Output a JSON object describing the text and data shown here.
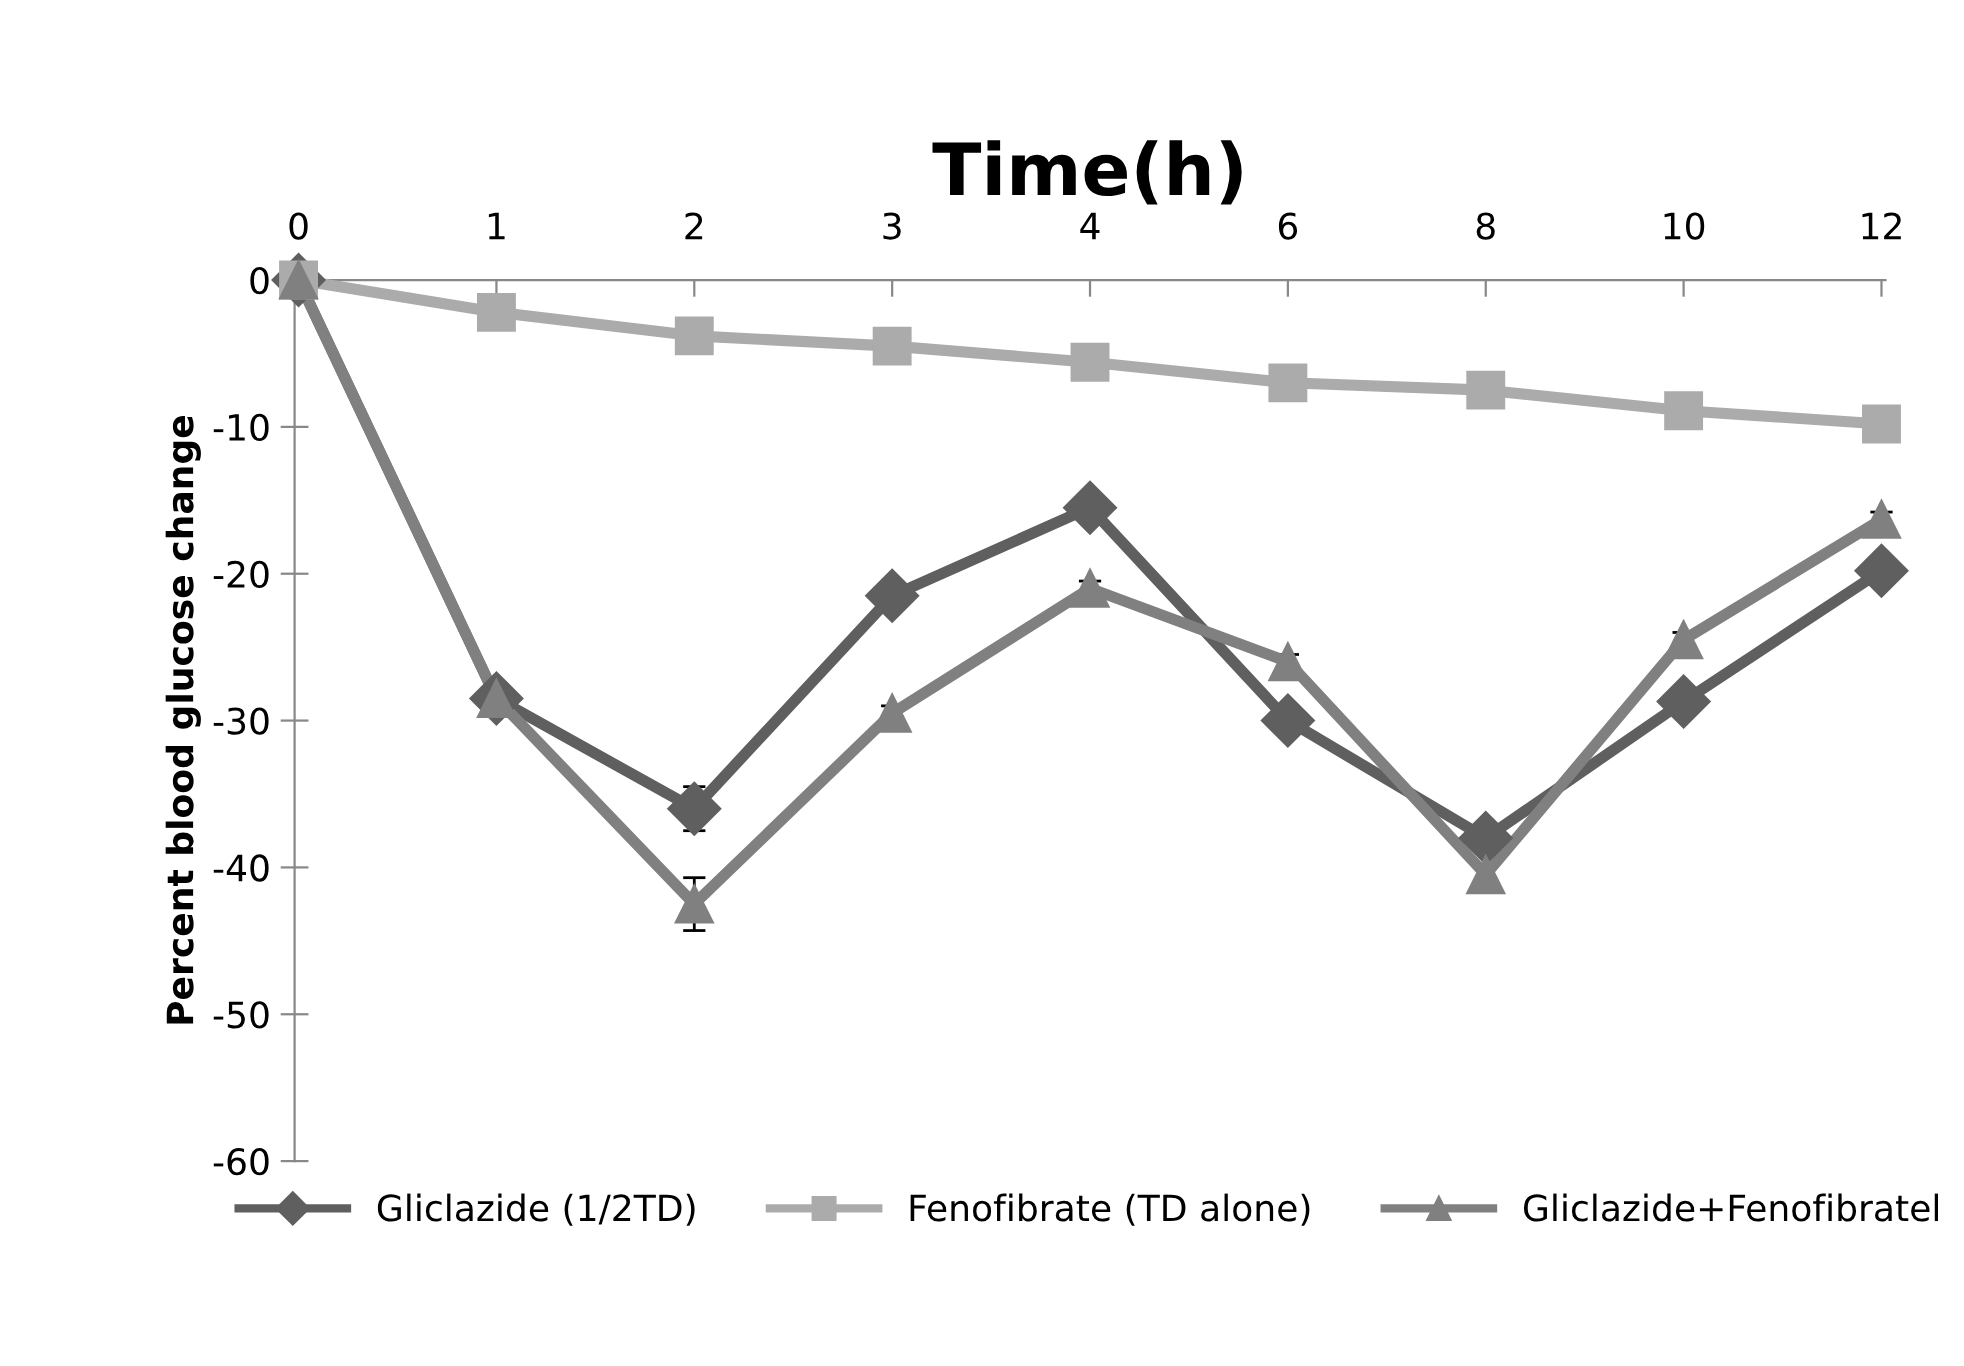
{
  "chart_data": {
    "type": "line",
    "xlabel": "Time(h)",
    "ylabel": "Percent blood glucose change",
    "categories": [
      "0",
      "1",
      "2",
      "3",
      "4",
      "6",
      "8",
      "10",
      "12"
    ],
    "series": [
      {
        "name": "Gliclazide (1/2TD)",
        "color": "#5f5f5f",
        "marker": "diamond",
        "values": [
          0,
          -28.5,
          -36,
          -21.5,
          -15.5,
          -30,
          -38,
          -28.7,
          -19.8
        ],
        "errors": [
          null,
          1,
          1.5,
          0.5,
          0.5,
          0.5,
          1,
          0.5,
          0.5
        ]
      },
      {
        "name": "Fenofibrate (TD alone)",
        "color": "#ababab",
        "marker": "square",
        "values": [
          0,
          -2.2,
          -3.8,
          -4.5,
          -5.6,
          -7,
          -7.5,
          -8.9,
          -9.8
        ]
      },
      {
        "name": "Gliclazide+Fenofibratel",
        "color": "#808080",
        "marker": "triangle",
        "values": [
          0,
          -28.5,
          -42.5,
          -29.5,
          -21,
          -26,
          -40.5,
          -24.5,
          -16.3
        ],
        "errors": [
          null,
          1,
          1.8,
          0.5,
          0.5,
          0.5,
          0.5,
          0.5,
          0.5
        ]
      }
    ],
    "ylim": [
      -60,
      0
    ],
    "yticks": [
      -60,
      -50,
      -40,
      -30,
      -20,
      -10,
      0
    ],
    "grid": false,
    "legend": "bottom",
    "line_style": "solid"
  }
}
